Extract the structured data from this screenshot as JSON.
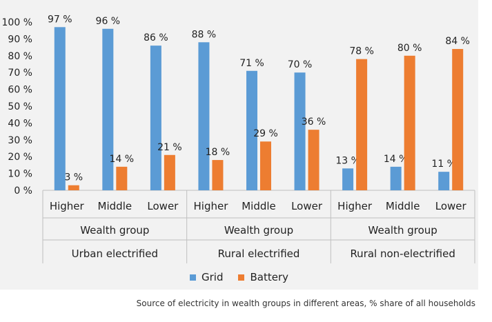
{
  "chart_data": {
    "type": "bar",
    "yaxis": {
      "ticks": [
        "0 %",
        "10 %",
        "20 %",
        "30 %",
        "40 %",
        "50 %",
        "60 %",
        "70 %",
        "80 %",
        "90 %",
        "100 %"
      ],
      "ylim": [
        0,
        100
      ]
    },
    "categories": [
      "Higher",
      "Middle",
      "Lower",
      "Higher",
      "Middle",
      "Lower",
      "Higher",
      "Middle",
      "Lower"
    ],
    "groups": [
      {
        "label": "Wealth group",
        "area": "Urban electrified",
        "count": 3
      },
      {
        "label": "Wealth group",
        "area": "Rural electrified",
        "count": 3
      },
      {
        "label": "Wealth group",
        "area": "Rural non-electrified",
        "count": 3
      }
    ],
    "series": [
      {
        "name": "Grid",
        "color": "#5b9bd5",
        "values": [
          97,
          96,
          86,
          88,
          71,
          70,
          13,
          14,
          11
        ],
        "labels": [
          "97 %",
          "96 %",
          "86 %",
          "88 %",
          "71 %",
          "70 %",
          "13 %",
          "14 %",
          "11 %"
        ]
      },
      {
        "name": "Battery",
        "color": "#ed7d31",
        "values": [
          3,
          14,
          21,
          18,
          29,
          36,
          78,
          80,
          84
        ],
        "labels": [
          "3 %",
          "14 %",
          "21 %",
          "18 %",
          "29 %",
          "36 %",
          "78 %",
          "80 %",
          "84 %"
        ]
      }
    ],
    "grid": false,
    "legend": "bottom"
  },
  "caption": "Source of electricity in wealth groups in different areas, % share of all households"
}
